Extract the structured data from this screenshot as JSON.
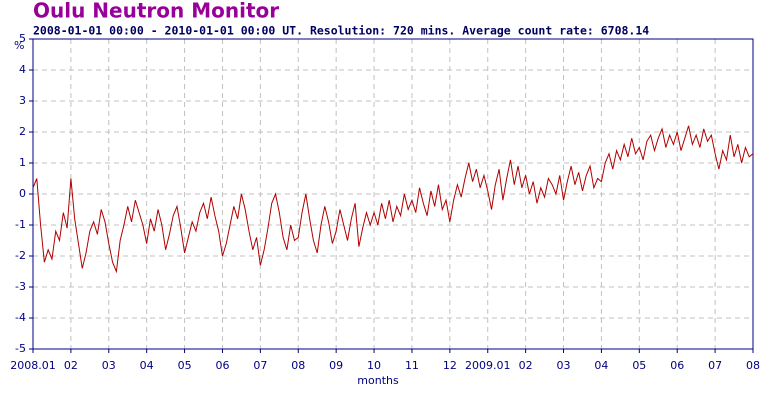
{
  "chart_data": {
    "type": "line",
    "title": "Oulu Neutron Monitor",
    "subtitle": "2008-01-01 00:00 - 2010-01-01 00:00 UT. Resolution: 720 mins. Average count rate: 6708.14",
    "y_label": "%",
    "x_label": "months",
    "xlim": [
      0,
      19
    ],
    "ylim": [
      -5,
      5
    ],
    "yticks": [
      -5,
      -4,
      -3,
      -2,
      -1,
      0,
      1,
      2,
      3,
      4,
      5
    ],
    "xticks": [
      {
        "value": 0,
        "label": "2008.01"
      },
      {
        "value": 1,
        "label": "02"
      },
      {
        "value": 2,
        "label": "03"
      },
      {
        "value": 3,
        "label": "04"
      },
      {
        "value": 4,
        "label": "05"
      },
      {
        "value": 5,
        "label": "06"
      },
      {
        "value": 6,
        "label": "07"
      },
      {
        "value": 7,
        "label": "08"
      },
      {
        "value": 8,
        "label": "09"
      },
      {
        "value": 9,
        "label": "10"
      },
      {
        "value": 10,
        "label": "11"
      },
      {
        "value": 11,
        "label": "12"
      },
      {
        "value": 12,
        "label": "2009.01"
      },
      {
        "value": 13,
        "label": "02"
      },
      {
        "value": 14,
        "label": "03"
      },
      {
        "value": 15,
        "label": "04"
      },
      {
        "value": 16,
        "label": "05"
      },
      {
        "value": 17,
        "label": "06"
      },
      {
        "value": 18,
        "label": "07"
      },
      {
        "value": 19,
        "label": "08"
      }
    ],
    "grid": true,
    "series": [
      {
        "color": "#b00000",
        "x": [
          0,
          0.1,
          0.2,
          0.3,
          0.4,
          0.5,
          0.6,
          0.7,
          0.8,
          0.9,
          1,
          1.1,
          1.2,
          1.3,
          1.4,
          1.5,
          1.6,
          1.7,
          1.8,
          1.9,
          2,
          2.1,
          2.2,
          2.3,
          2.4,
          2.5,
          2.6,
          2.7,
          2.8,
          2.9,
          3,
          3.1,
          3.2,
          3.3,
          3.4,
          3.5,
          3.6,
          3.7,
          3.8,
          3.9,
          4,
          4.1,
          4.2,
          4.3,
          4.4,
          4.5,
          4.6,
          4.7,
          4.8,
          4.9,
          5,
          5.1,
          5.2,
          5.3,
          5.4,
          5.5,
          5.6,
          5.7,
          5.8,
          5.9,
          6,
          6.1,
          6.2,
          6.3,
          6.4,
          6.5,
          6.6,
          6.7,
          6.8,
          6.9,
          7,
          7.1,
          7.2,
          7.3,
          7.4,
          7.5,
          7.6,
          7.7,
          7.8,
          7.9,
          8,
          8.1,
          8.2,
          8.3,
          8.4,
          8.5,
          8.6,
          8.7,
          8.8,
          8.9,
          9,
          9.1,
          9.2,
          9.3,
          9.4,
          9.5,
          9.6,
          9.7,
          9.8,
          9.9,
          10,
          10.1,
          10.2,
          10.3,
          10.4,
          10.5,
          10.6,
          10.7,
          10.8,
          10.9,
          11,
          11.1,
          11.2,
          11.3,
          11.4,
          11.5,
          11.6,
          11.7,
          11.8,
          11.9,
          12,
          12.1,
          12.2,
          12.3,
          12.4,
          12.5,
          12.6,
          12.7,
          12.8,
          12.9,
          13,
          13.1,
          13.2,
          13.3,
          13.4,
          13.5,
          13.6,
          13.7,
          13.8,
          13.9,
          14,
          14.1,
          14.2,
          14.3,
          14.4,
          14.5,
          14.6,
          14.7,
          14.8,
          14.9,
          15,
          15.1,
          15.2,
          15.3,
          15.4,
          15.5,
          15.6,
          15.7,
          15.8,
          15.9,
          16,
          16.1,
          16.2,
          16.3,
          16.4,
          16.5,
          16.6,
          16.7,
          16.8,
          16.9,
          17,
          17.1,
          17.2,
          17.3,
          17.4,
          17.5,
          17.6,
          17.7,
          17.8,
          17.9,
          18,
          18.1,
          18.2,
          18.3,
          18.4,
          18.5,
          18.6,
          18.7,
          18.8,
          18.9,
          19
        ],
        "values": [
          0.2,
          0.5,
          -1.0,
          -2.2,
          -1.8,
          -2.1,
          -1.2,
          -1.5,
          -0.6,
          -1.1,
          0.5,
          -0.8,
          -1.6,
          -2.4,
          -1.9,
          -1.2,
          -0.9,
          -1.3,
          -0.5,
          -0.9,
          -1.6,
          -2.2,
          -2.5,
          -1.5,
          -1.0,
          -0.4,
          -0.9,
          -0.2,
          -0.6,
          -1.0,
          -1.6,
          -0.8,
          -1.2,
          -0.5,
          -1.0,
          -1.8,
          -1.3,
          -0.7,
          -0.4,
          -1.1,
          -1.9,
          -1.4,
          -0.9,
          -1.2,
          -0.6,
          -0.3,
          -0.8,
          -0.1,
          -0.7,
          -1.2,
          -2.0,
          -1.6,
          -1.0,
          -0.4,
          -0.8,
          0.0,
          -0.5,
          -1.2,
          -1.8,
          -1.4,
          -2.3,
          -1.8,
          -1.1,
          -0.3,
          0.0,
          -0.6,
          -1.4,
          -1.8,
          -1.0,
          -1.5,
          -1.4,
          -0.6,
          0.0,
          -0.8,
          -1.5,
          -1.9,
          -1.0,
          -0.4,
          -0.9,
          -1.6,
          -1.2,
          -0.5,
          -1.0,
          -1.5,
          -0.8,
          -0.3,
          -1.7,
          -1.1,
          -0.6,
          -1.0,
          -0.6,
          -1.0,
          -0.3,
          -0.8,
          -0.2,
          -0.9,
          -0.4,
          -0.7,
          0.0,
          -0.5,
          -0.2,
          -0.6,
          0.2,
          -0.3,
          -0.7,
          0.1,
          -0.4,
          0.3,
          -0.5,
          -0.2,
          -0.9,
          -0.2,
          0.3,
          -0.1,
          0.5,
          1.0,
          0.4,
          0.8,
          0.2,
          0.6,
          0.1,
          -0.5,
          0.3,
          0.8,
          -0.2,
          0.5,
          1.1,
          0.3,
          0.9,
          0.2,
          0.6,
          0.0,
          0.4,
          -0.3,
          0.2,
          -0.1,
          0.5,
          0.3,
          0.0,
          0.6,
          -0.2,
          0.4,
          0.9,
          0.3,
          0.7,
          0.1,
          0.6,
          0.9,
          0.2,
          0.5,
          0.4,
          1.0,
          1.3,
          0.8,
          1.4,
          1.1,
          1.6,
          1.2,
          1.8,
          1.3,
          1.5,
          1.1,
          1.7,
          1.9,
          1.4,
          1.8,
          2.1,
          1.5,
          1.9,
          1.6,
          2.0,
          1.4,
          1.8,
          2.2,
          1.6,
          1.9,
          1.5,
          2.1,
          1.7,
          1.9,
          1.3,
          0.8,
          1.4,
          1.1,
          1.9,
          1.2,
          1.6,
          1.0,
          1.5,
          1.2,
          1.3
        ]
      }
    ]
  }
}
